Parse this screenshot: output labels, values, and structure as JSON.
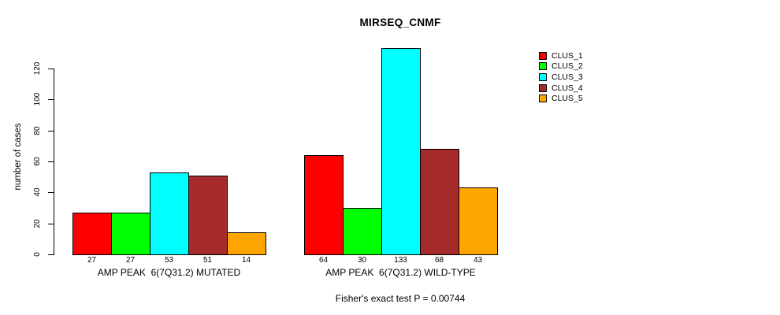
{
  "chart_data": {
    "type": "bar",
    "title": "MIRSEQ_CNMF",
    "ylabel": "number of cases",
    "ylim": [
      0,
      140
    ],
    "yticks": [
      0,
      20,
      40,
      60,
      80,
      100,
      120
    ],
    "grid": false,
    "legend_position": "top-right",
    "series": [
      {
        "name": "CLUS_1",
        "color": "#FF0000"
      },
      {
        "name": "CLUS_2",
        "color": "#00FF00"
      },
      {
        "name": "CLUS_3",
        "color": "#00FFFF"
      },
      {
        "name": "CLUS_4",
        "color": "#A52A2A"
      },
      {
        "name": "CLUS_5",
        "color": "#FFA500"
      }
    ],
    "groups": [
      {
        "label": "AMP PEAK  6(7Q31.2) MUTATED",
        "values": [
          27,
          27,
          53,
          51,
          14
        ]
      },
      {
        "label": "AMP PEAK  6(7Q31.2) WILD-TYPE",
        "values": [
          64,
          30,
          133,
          68,
          43
        ]
      }
    ],
    "bar_value_labels_shown": true,
    "annotation": "Fisher's exact test P = 0.00744"
  }
}
